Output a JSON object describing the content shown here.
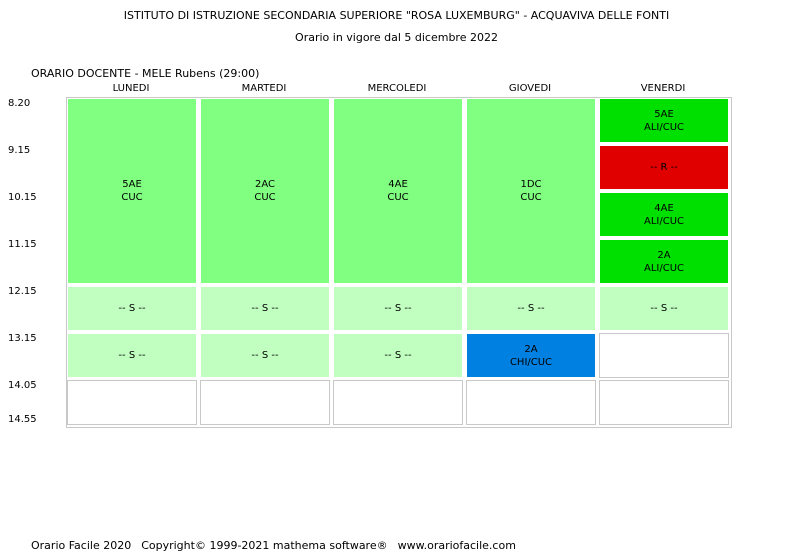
{
  "header": {
    "school": "ISTITUTO DI ISTRUZIONE SECONDARIA SUPERIORE \"ROSA LUXEMBURG\" - ACQUAVIVA DELLE FONTI",
    "validity": "Orario in vigore dal 5 dicembre 2022",
    "teacher_label": "ORARIO DOCENTE  -  MELE Rubens  (29:00)"
  },
  "days": [
    "LUNEDI",
    "MARTEDI",
    "MERCOLEDI",
    "GIOVEDI",
    "VENERDI"
  ],
  "times": [
    "8.20",
    "9.15",
    "10.15",
    "11.15",
    "12.15",
    "13.15",
    "14.05",
    "14.55"
  ],
  "colors": {
    "lesson_light": "#80ff80",
    "lesson_green": "#00e000",
    "service": "#c0ffc0",
    "reserve": "#e00000",
    "chi_cuc": "#0080e0"
  },
  "lessons": [
    {
      "day": 0,
      "start": 0,
      "span": 4,
      "class": "5AE",
      "subject": "CUC",
      "color": "#80ff80"
    },
    {
      "day": 1,
      "start": 0,
      "span": 4,
      "class": "2AC",
      "subject": "CUC",
      "color": "#80ff80"
    },
    {
      "day": 2,
      "start": 0,
      "span": 4,
      "class": "4AE",
      "subject": "CUC",
      "color": "#80ff80"
    },
    {
      "day": 3,
      "start": 0,
      "span": 4,
      "class": "1DC",
      "subject": "CUC",
      "color": "#80ff80"
    },
    {
      "day": 4,
      "start": 0,
      "span": 1,
      "class": "5AE",
      "subject": "ALI/CUC",
      "color": "#00e000"
    },
    {
      "day": 4,
      "start": 1,
      "span": 1,
      "class": "-- R --",
      "subject": "",
      "color": "#e00000"
    },
    {
      "day": 4,
      "start": 2,
      "span": 1,
      "class": "4AE",
      "subject": "ALI/CUC",
      "color": "#00e000"
    },
    {
      "day": 4,
      "start": 3,
      "span": 1,
      "class": "2A",
      "subject": "ALI/CUC",
      "color": "#00e000"
    },
    {
      "day": 0,
      "start": 4,
      "span": 1,
      "class": "-- S --",
      "subject": "",
      "color": "#c0ffc0"
    },
    {
      "day": 1,
      "start": 4,
      "span": 1,
      "class": "-- S --",
      "subject": "",
      "color": "#c0ffc0"
    },
    {
      "day": 2,
      "start": 4,
      "span": 1,
      "class": "-- S --",
      "subject": "",
      "color": "#c0ffc0"
    },
    {
      "day": 3,
      "start": 4,
      "span": 1,
      "class": "-- S --",
      "subject": "",
      "color": "#c0ffc0"
    },
    {
      "day": 4,
      "start": 4,
      "span": 1,
      "class": "-- S --",
      "subject": "",
      "color": "#c0ffc0"
    },
    {
      "day": 0,
      "start": 5,
      "span": 1,
      "class": "-- S --",
      "subject": "",
      "color": "#c0ffc0"
    },
    {
      "day": 1,
      "start": 5,
      "span": 1,
      "class": "-- S --",
      "subject": "",
      "color": "#c0ffc0"
    },
    {
      "day": 2,
      "start": 5,
      "span": 1,
      "class": "-- S --",
      "subject": "",
      "color": "#c0ffc0"
    },
    {
      "day": 3,
      "start": 5,
      "span": 1,
      "class": "2A",
      "subject": "CHI/CUC",
      "color": "#0080e0"
    }
  ],
  "empty_cells": [
    {
      "day": 4,
      "start": 5
    },
    {
      "day": 0,
      "start": 6
    },
    {
      "day": 1,
      "start": 6
    },
    {
      "day": 2,
      "start": 6
    },
    {
      "day": 3,
      "start": 6
    },
    {
      "day": 4,
      "start": 6
    }
  ],
  "footer": {
    "product": "Orario Facile 2020",
    "copyright": "Copyright© 1999-2021 mathema software®",
    "url": "www.orariofacile.com"
  }
}
